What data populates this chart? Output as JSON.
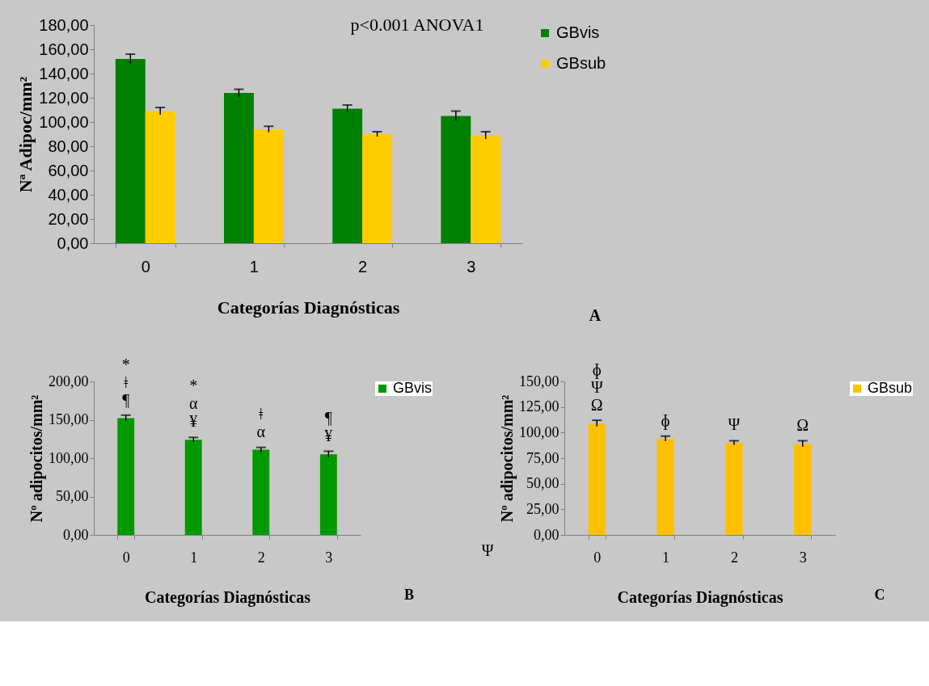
{
  "chart_data": [
    {
      "type": "bar",
      "categories": [
        "0",
        "1",
        "2",
        "3"
      ],
      "xlabel": "Categorías Diagnósticas",
      "ylabel": "Nª Adipoc/mm²",
      "series": [
        {
          "name": "GBvis",
          "color": "#008000",
          "values": [
            152,
            124,
            111,
            105
          ],
          "errors": [
            4,
            3,
            3,
            4
          ]
        },
        {
          "name": "GBsub",
          "color": "#ffcc00",
          "values": [
            109,
            94,
            90,
            89
          ],
          "errors": [
            3,
            2.5,
            2,
            3
          ]
        }
      ],
      "ylim": [
        0,
        180
      ],
      "yticks": [
        {
          "value": 0,
          "label": "0,00"
        },
        {
          "value": 20,
          "label": "20,00"
        },
        {
          "value": 40,
          "label": "40,00"
        },
        {
          "value": 60,
          "label": "60,00"
        },
        {
          "value": 80,
          "label": "80,00"
        },
        {
          "value": 100,
          "label": "100,00"
        },
        {
          "value": 120,
          "label": "120,00"
        },
        {
          "value": 140,
          "label": "140,00"
        },
        {
          "value": 160,
          "label": "160,00"
        },
        {
          "value": 180,
          "label": "180,00"
        }
      ],
      "annotations": [
        "p<0.001 ANOVA1",
        "A"
      ],
      "legend": "right",
      "grid": false
    },
    {
      "type": "bar",
      "categories": [
        "0",
        "1",
        "2",
        "3"
      ],
      "xlabel": "Categorías Diagnósticas",
      "ylabel": "Nº adipocitos/mm²",
      "series": [
        {
          "name": "GBvis",
          "color": "#009900",
          "values": [
            152,
            124,
            111,
            105
          ],
          "errors": [
            4,
            3,
            3,
            4
          ]
        }
      ],
      "ylim": [
        0,
        200
      ],
      "yticks": [
        {
          "value": 0,
          "label": "0,00"
        },
        {
          "value": 50,
          "label": "50,00"
        },
        {
          "value": 100,
          "label": "100,00"
        },
        {
          "value": 150,
          "label": "150,00"
        },
        {
          "value": 200,
          "label": "200,00"
        }
      ],
      "annotations": [
        {
          "text": "*\nǂ\n¶",
          "x": "0",
          "y": 152
        },
        {
          "text": "*\nα\n¥",
          "x": "1",
          "y": 124
        },
        {
          "text": "ǂ\nα",
          "x": "2",
          "y": 111
        },
        {
          "text": "¶\n¥",
          "x": "3",
          "y": 105
        },
        "B"
      ],
      "legend": "right",
      "grid": false
    },
    {
      "type": "bar",
      "categories": [
        "0",
        "1",
        "2",
        "3"
      ],
      "xlabel": "Categorías Diagnósticas",
      "ylabel": "Nº adipocitos/mm²",
      "series": [
        {
          "name": "GBsub",
          "color": "#ffc000",
          "values": [
            109,
            94,
            90,
            89
          ],
          "errors": [
            3,
            2.5,
            2,
            3
          ]
        }
      ],
      "ylim": [
        0,
        150
      ],
      "yticks": [
        {
          "value": 0,
          "label": "0,00"
        },
        {
          "value": 25,
          "label": "25,00"
        },
        {
          "value": 50,
          "label": "50,00"
        },
        {
          "value": 75,
          "label": "75,00"
        },
        {
          "value": 100,
          "label": "100,00"
        },
        {
          "value": 125,
          "label": "125,00"
        },
        {
          "value": 150,
          "label": "150,00"
        }
      ],
      "annotations": [
        {
          "text": "ɸ\nΨ\nΩ",
          "x": "0",
          "y": 109
        },
        {
          "text": "ɸ",
          "x": "1",
          "y": 94
        },
        {
          "text": "Ψ",
          "x": "2",
          "y": 90
        },
        {
          "text": "Ω",
          "x": "3",
          "y": 89
        },
        "Ψ",
        "C"
      ],
      "legend": "right",
      "grid": false
    }
  ]
}
